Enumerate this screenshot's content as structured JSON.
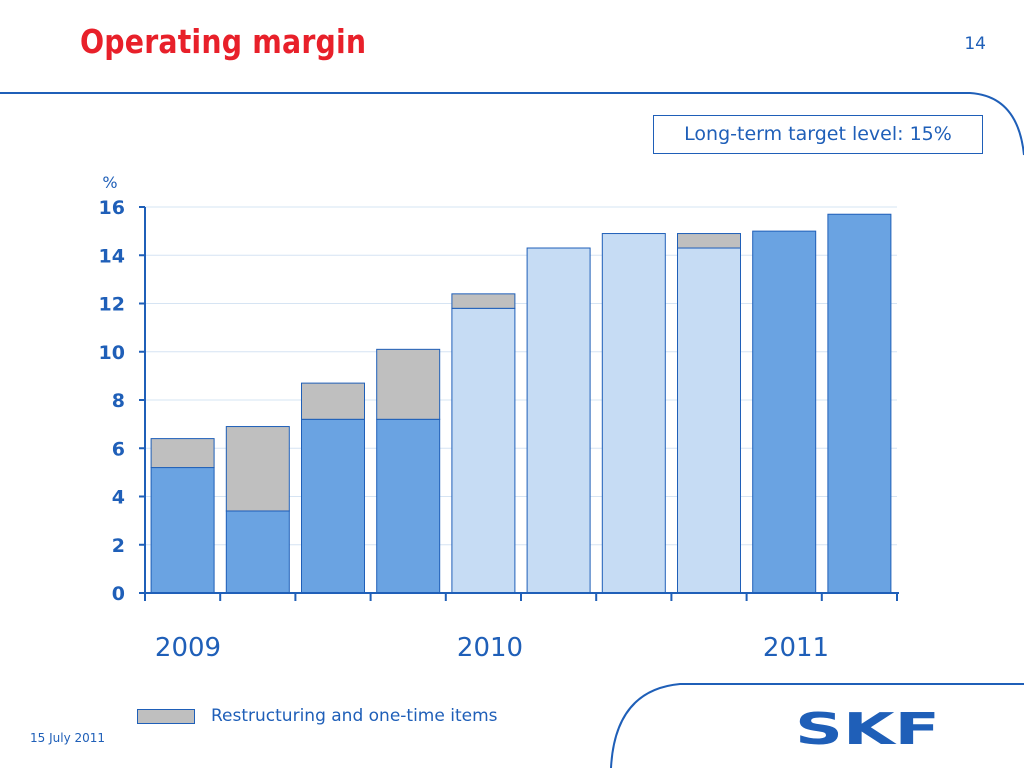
{
  "slide": {
    "title": "Operating margin",
    "page_number": "14",
    "target_note": "Long-term target level: 15%",
    "date": "15 July 2011",
    "brand": "SKF"
  },
  "colors": {
    "title_red": "#e8202a",
    "skf_blue": "#1f5fb8",
    "bar_dark": "#6aa3e2",
    "bar_light": "#c6dcf4",
    "restructuring": "#bfbfbf",
    "grid": "#d6e4f3"
  },
  "chart_data": {
    "type": "bar",
    "stacked": true,
    "ylabel": "%",
    "ylim": [
      0,
      16
    ],
    "yticks": [
      0,
      2,
      4,
      6,
      8,
      10,
      12,
      14,
      16
    ],
    "grid": true,
    "year_labels": [
      "2009",
      "2010",
      "2011"
    ],
    "bars": [
      {
        "base": 5.2,
        "restructuring": 1.2,
        "shade": "dark"
      },
      {
        "base": 3.4,
        "restructuring": 3.5,
        "shade": "dark"
      },
      {
        "base": 7.2,
        "restructuring": 1.5,
        "shade": "dark"
      },
      {
        "base": 7.2,
        "restructuring": 2.9,
        "shade": "dark"
      },
      {
        "base": 11.8,
        "restructuring": 0.6,
        "shade": "light"
      },
      {
        "base": 14.3,
        "restructuring": 0,
        "shade": "light"
      },
      {
        "base": 14.9,
        "restructuring": 0,
        "shade": "light"
      },
      {
        "base": 14.3,
        "restructuring": 0.6,
        "shade": "light"
      },
      {
        "base": 15.0,
        "restructuring": 0,
        "shade": "dark"
      },
      {
        "base": 15.7,
        "restructuring": 0,
        "shade": "dark"
      }
    ],
    "legend": [
      {
        "name": "Restructuring and one-time items",
        "color": "#bfbfbf"
      }
    ]
  }
}
